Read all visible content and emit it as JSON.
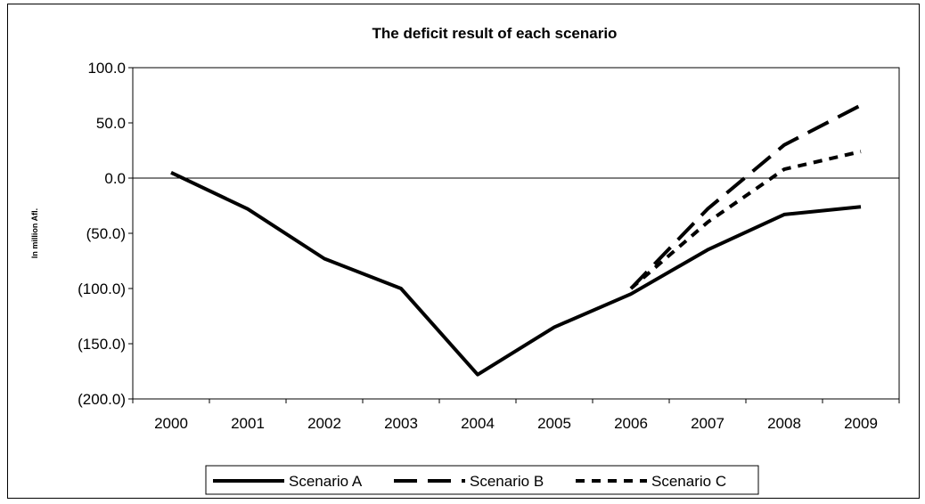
{
  "chart_data": {
    "type": "line",
    "title": "The deficit result of each scenario",
    "xlabel": "",
    "ylabel": "In million Afl.",
    "ylim": [
      -200,
      100
    ],
    "yticks": [
      100,
      50,
      0,
      -50,
      -100,
      -150,
      -200
    ],
    "ytick_labels": [
      "100.0",
      "50.0",
      "0.0",
      "(50.0)",
      "(100.0)",
      "(150.0)",
      "(200.0)"
    ],
    "categories": [
      "2000",
      "2001",
      "2002",
      "2003",
      "2004",
      "2005",
      "2006",
      "2007",
      "2008",
      "2009"
    ],
    "grid": false,
    "legend_position": "bottom",
    "series": [
      {
        "name": "Scenario A",
        "style": "solid",
        "color": "#000000",
        "values": [
          5,
          -28,
          -73,
          -100,
          -178,
          -135,
          -105,
          -65,
          -33,
          -26
        ]
      },
      {
        "name": "Scenario B",
        "style": "long-dash",
        "color": "#000000",
        "values": [
          null,
          null,
          null,
          null,
          null,
          null,
          -100,
          -28,
          30,
          66
        ]
      },
      {
        "name": "Scenario C",
        "style": "short-dash",
        "color": "#000000",
        "values": [
          null,
          null,
          null,
          null,
          null,
          null,
          -100,
          -40,
          8,
          24
        ]
      }
    ]
  }
}
